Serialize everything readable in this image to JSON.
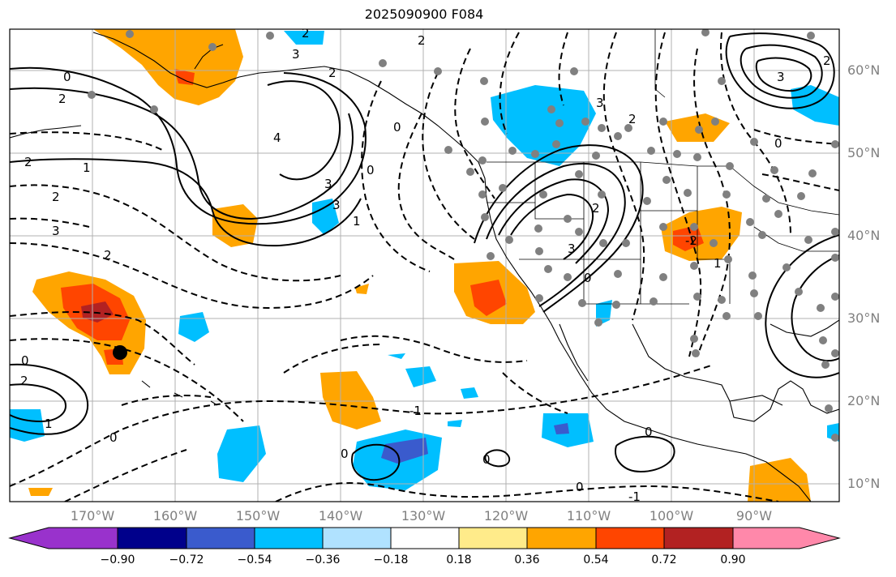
{
  "title": "2025090900 F084",
  "lat_labels": [
    "60°N",
    "50°N",
    "40°N",
    "30°N",
    "20°N",
    "10°N"
  ],
  "lon_labels": [
    "170°W",
    "160°W",
    "150°W",
    "140°W",
    "130°W",
    "120°W",
    "110°W",
    "100°W",
    "90°W"
  ],
  "colorbar": {
    "ticks": [
      "−0.90",
      "−0.72",
      "−0.54",
      "−0.36",
      "−0.18",
      "0.18",
      "0.36",
      "0.54",
      "0.72",
      "0.90"
    ],
    "colors": [
      "#9932cc",
      "#00008b",
      "#3a5bcd",
      "#00bfff",
      "#b0e2ff",
      "#ffffff",
      "#ffeb8a",
      "#ffa500",
      "#ff4500",
      "#b22222",
      "#ff88aa"
    ]
  },
  "contour_labels": [
    "0",
    "2",
    "2",
    "1",
    "2",
    "3",
    "2",
    "2",
    "4",
    "3",
    "3",
    "3",
    "1",
    "2",
    "0",
    "2",
    "0",
    "-1",
    "0",
    "0",
    "0",
    "1",
    "3",
    "2",
    "0",
    "3",
    "2",
    "0",
    "0",
    "0",
    "1",
    "2",
    "3",
    "0",
    "2",
    "-1",
    "-2"
  ]
}
